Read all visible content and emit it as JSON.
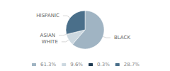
{
  "chart_data": {
    "type": "pie",
    "categories": [
      "BLACK",
      "WHITE",
      "ASIAN",
      "HISPANIC"
    ],
    "values": [
      61.3,
      9.6,
      0.3,
      28.7
    ],
    "value_labels": [
      "61.3%",
      "9.6%",
      "0.3%",
      "28.7%"
    ],
    "colors": [
      "#a0b4c3",
      "#ccd8e0",
      "#1e3a52",
      "#4a6f8a"
    ],
    "legend": "bottom"
  }
}
